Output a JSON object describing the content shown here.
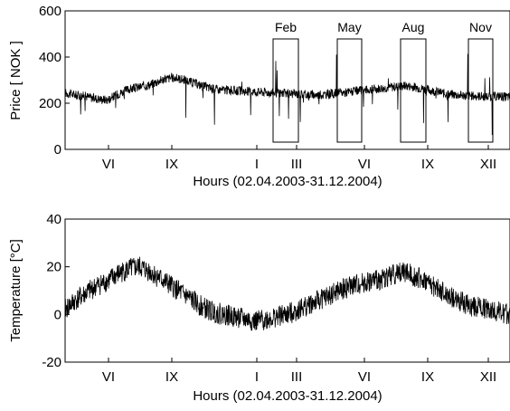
{
  "chart_data": [
    {
      "type": "line",
      "ylabel": "Price [ NOK ]",
      "xlabel": "Hours (02.04.2003-31.12.2004)",
      "ylim": [
        0,
        600
      ],
      "yticks": [
        "0",
        "200",
        "400",
        "600"
      ],
      "xticks": [
        "VI",
        "IX",
        "I",
        "III",
        "VI",
        "IX",
        "XII"
      ],
      "grid": false,
      "highlight_windows": [
        "Feb",
        "May",
        "Aug",
        "Nov"
      ],
      "series": [
        {
          "x_month_index": [
            0,
            0.5,
            1,
            1.5,
            2,
            2.5,
            3,
            3.5,
            4,
            4.5,
            5,
            5.5,
            6,
            6.5,
            7,
            7.5,
            8,
            8.5,
            9,
            9.5,
            10,
            10.5,
            11,
            11.5,
            12,
            12.5,
            13,
            13.5,
            14,
            14.5,
            15,
            15.5,
            16,
            16.5,
            17,
            17.5,
            18,
            18.5,
            19,
            19.5,
            20,
            20.5,
            21
          ],
          "values": [
            245,
            235,
            230,
            220,
            215,
            240,
            260,
            270,
            280,
            300,
            310,
            305,
            290,
            275,
            262,
            258,
            255,
            252,
            250,
            248,
            245,
            242,
            240,
            238,
            236,
            240,
            245,
            250,
            255,
            260,
            265,
            270,
            275,
            270,
            260,
            250,
            240,
            235,
            232,
            230,
            228,
            230,
            225
          ]
        }
      ]
    },
    {
      "type": "line",
      "ylabel": "Temperature [°C]",
      "xlabel": "Hours (02.04.2003-31.12.2004)",
      "ylim": [
        -20,
        40
      ],
      "yticks": [
        "-20",
        "0",
        "20",
        "40"
      ],
      "xticks": [
        "VI",
        "IX",
        "I",
        "III",
        "VI",
        "IX",
        "XII"
      ],
      "grid": false,
      "series": [
        {
          "x_month_index": [
            0,
            0.5,
            1,
            1.5,
            2,
            2.5,
            3,
            3.5,
            4,
            4.5,
            5,
            5.5,
            6,
            6.5,
            7,
            7.5,
            8,
            8.5,
            9,
            9.5,
            10,
            10.5,
            11,
            11.5,
            12,
            12.5,
            13,
            13.5,
            14,
            14.5,
            15,
            15.5,
            16,
            16.5,
            17,
            17.5,
            18,
            18.5,
            19,
            19.5,
            20,
            20.5,
            21
          ],
          "values": [
            2,
            6,
            9,
            12,
            14,
            17,
            19,
            20,
            18,
            15,
            12,
            9,
            6,
            3,
            1,
            0,
            -1,
            -2,
            -3,
            -2,
            -1,
            0,
            2,
            4,
            6,
            8,
            10,
            12,
            13,
            14,
            15,
            17,
            18,
            16,
            14,
            11,
            8,
            6,
            4,
            3,
            2,
            1,
            0
          ]
        }
      ]
    }
  ]
}
